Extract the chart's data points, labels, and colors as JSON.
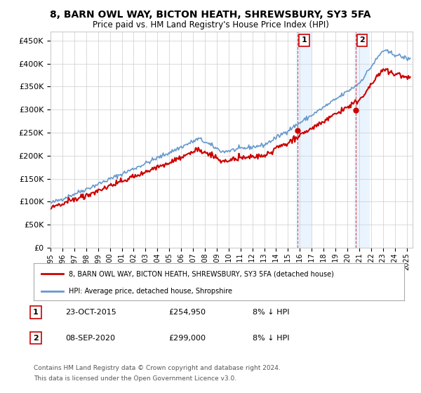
{
  "title": "8, BARN OWL WAY, BICTON HEATH, SHREWSBURY, SY3 5FA",
  "subtitle": "Price paid vs. HM Land Registry's House Price Index (HPI)",
  "ylabel_ticks": [
    "£0",
    "£50K",
    "£100K",
    "£150K",
    "£200K",
    "£250K",
    "£300K",
    "£350K",
    "£400K",
    "£450K"
  ],
  "ytick_values": [
    0,
    50000,
    100000,
    150000,
    200000,
    250000,
    300000,
    350000,
    400000,
    450000
  ],
  "ylim": [
    0,
    470000
  ],
  "xlim_start": 1995.0,
  "xlim_end": 2025.5,
  "legend_line1": "8, BARN OWL WAY, BICTON HEATH, SHREWSBURY, SY3 5FA (detached house)",
  "legend_line2": "HPI: Average price, detached house, Shropshire",
  "annotation1_num": "1",
  "annotation1_date": "23-OCT-2015",
  "annotation1_price": "£254,950",
  "annotation1_hpi": "8% ↓ HPI",
  "annotation2_num": "2",
  "annotation2_date": "08-SEP-2020",
  "annotation2_price": "£299,000",
  "annotation2_hpi": "8% ↓ HPI",
  "footer1": "Contains HM Land Registry data © Crown copyright and database right 2024.",
  "footer2": "This data is licensed under the Open Government Licence v3.0.",
  "sale1_x": 2015.81,
  "sale1_y": 254950,
  "sale2_x": 2020.69,
  "sale2_y": 299000,
  "red_color": "#cc0000",
  "blue_color": "#6699cc",
  "shading_color": "#ddeeff",
  "background_color": "#ffffff",
  "grid_color": "#cccccc"
}
